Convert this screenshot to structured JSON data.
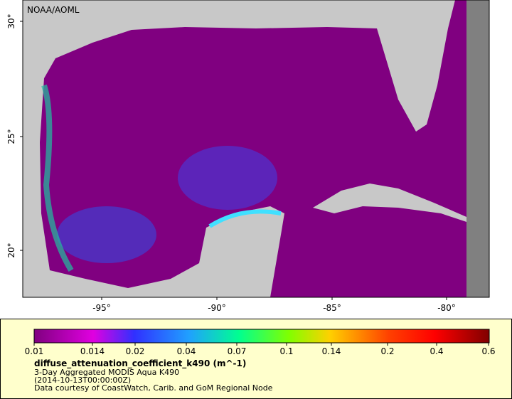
{
  "map": {
    "credit": "NOAA/AOML",
    "lat_labels": [
      "30°",
      "25°",
      "20°"
    ],
    "lon_labels": [
      "-95°",
      "-90°",
      "-85°",
      "-80°"
    ]
  },
  "legend": {
    "ticks": [
      "0.01",
      "0.014",
      "0.02",
      "0.04",
      "0.07",
      "0.1",
      "0.14",
      "0.2",
      "0.4",
      "0.6"
    ],
    "variable": "diffuse_attenuation_coefficient_k490 (m^-1)",
    "lines": [
      "3-Day Aggregated MODIS Aqua K490",
      "(2014-10-13T00:00:00Z)",
      "Data courtesy of CoastWatch, Carib. and GoM Regional Node"
    ]
  }
}
